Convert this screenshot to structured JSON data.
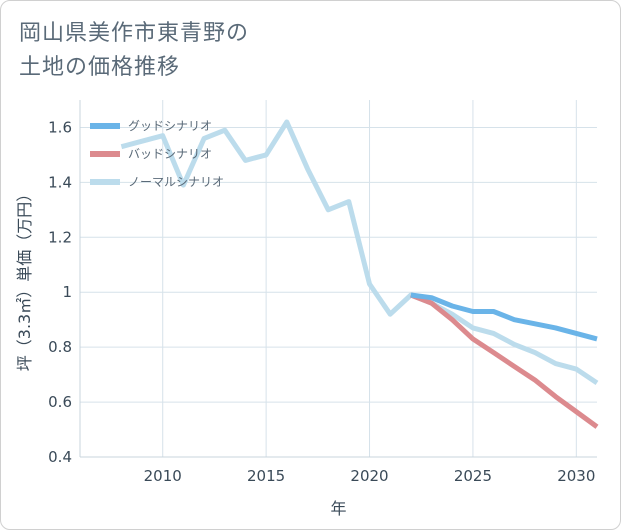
{
  "page": {
    "title_line1": "岡山県美作市東青野の",
    "title_line2": "土地の価格推移"
  },
  "chart_data": {
    "type": "line",
    "xlabel": "年",
    "ylabel": "坪（3.3㎡）単価（万円）",
    "xlim": [
      2006,
      2031
    ],
    "ylim": [
      0.4,
      1.7
    ],
    "x_ticks": [
      2010,
      2015,
      2020,
      2025,
      2030
    ],
    "y_ticks": [
      0.4,
      0.6,
      0.8,
      1,
      1.2,
      1.4,
      1.6
    ],
    "x_tick_labels": [
      "2010",
      "2015",
      "2020",
      "2025",
      "2030"
    ],
    "y_tick_labels": [
      "0.4",
      "0.6",
      "0.8",
      "1",
      "1.2",
      "1.4",
      "1.6"
    ],
    "grid": true,
    "legend_position": "top-left",
    "series": [
      {
        "name": "グッドシナリオ",
        "color": "#6ab4e8",
        "x": [
          2022,
          2023,
          2024,
          2025,
          2026,
          2027,
          2028,
          2029,
          2030,
          2031
        ],
        "y": [
          0.99,
          0.98,
          0.95,
          0.93,
          0.93,
          0.9,
          0.885,
          0.87,
          0.85,
          0.83
        ]
      },
      {
        "name": "バッドシナリオ",
        "color": "#dc8a8e",
        "x": [
          2022,
          2023,
          2024,
          2025,
          2026,
          2027,
          2028,
          2029,
          2030,
          2031
        ],
        "y": [
          0.99,
          0.96,
          0.9,
          0.83,
          0.78,
          0.73,
          0.68,
          0.62,
          0.565,
          0.51
        ]
      },
      {
        "name": "ノーマルシナリオ",
        "color": "#bcdcec",
        "x": [
          2008,
          2009,
          2010,
          2011,
          2012,
          2013,
          2014,
          2015,
          2016,
          2017,
          2018,
          2019,
          2020,
          2021,
          2022,
          2023,
          2024,
          2025,
          2026,
          2027,
          2028,
          2029,
          2030,
          2031
        ],
        "y": [
          1.53,
          1.55,
          1.57,
          1.39,
          1.56,
          1.59,
          1.48,
          1.5,
          1.62,
          1.45,
          1.3,
          1.33,
          1.03,
          0.92,
          0.99,
          0.96,
          0.92,
          0.87,
          0.85,
          0.81,
          0.78,
          0.74,
          0.72,
          0.67
        ]
      }
    ]
  }
}
